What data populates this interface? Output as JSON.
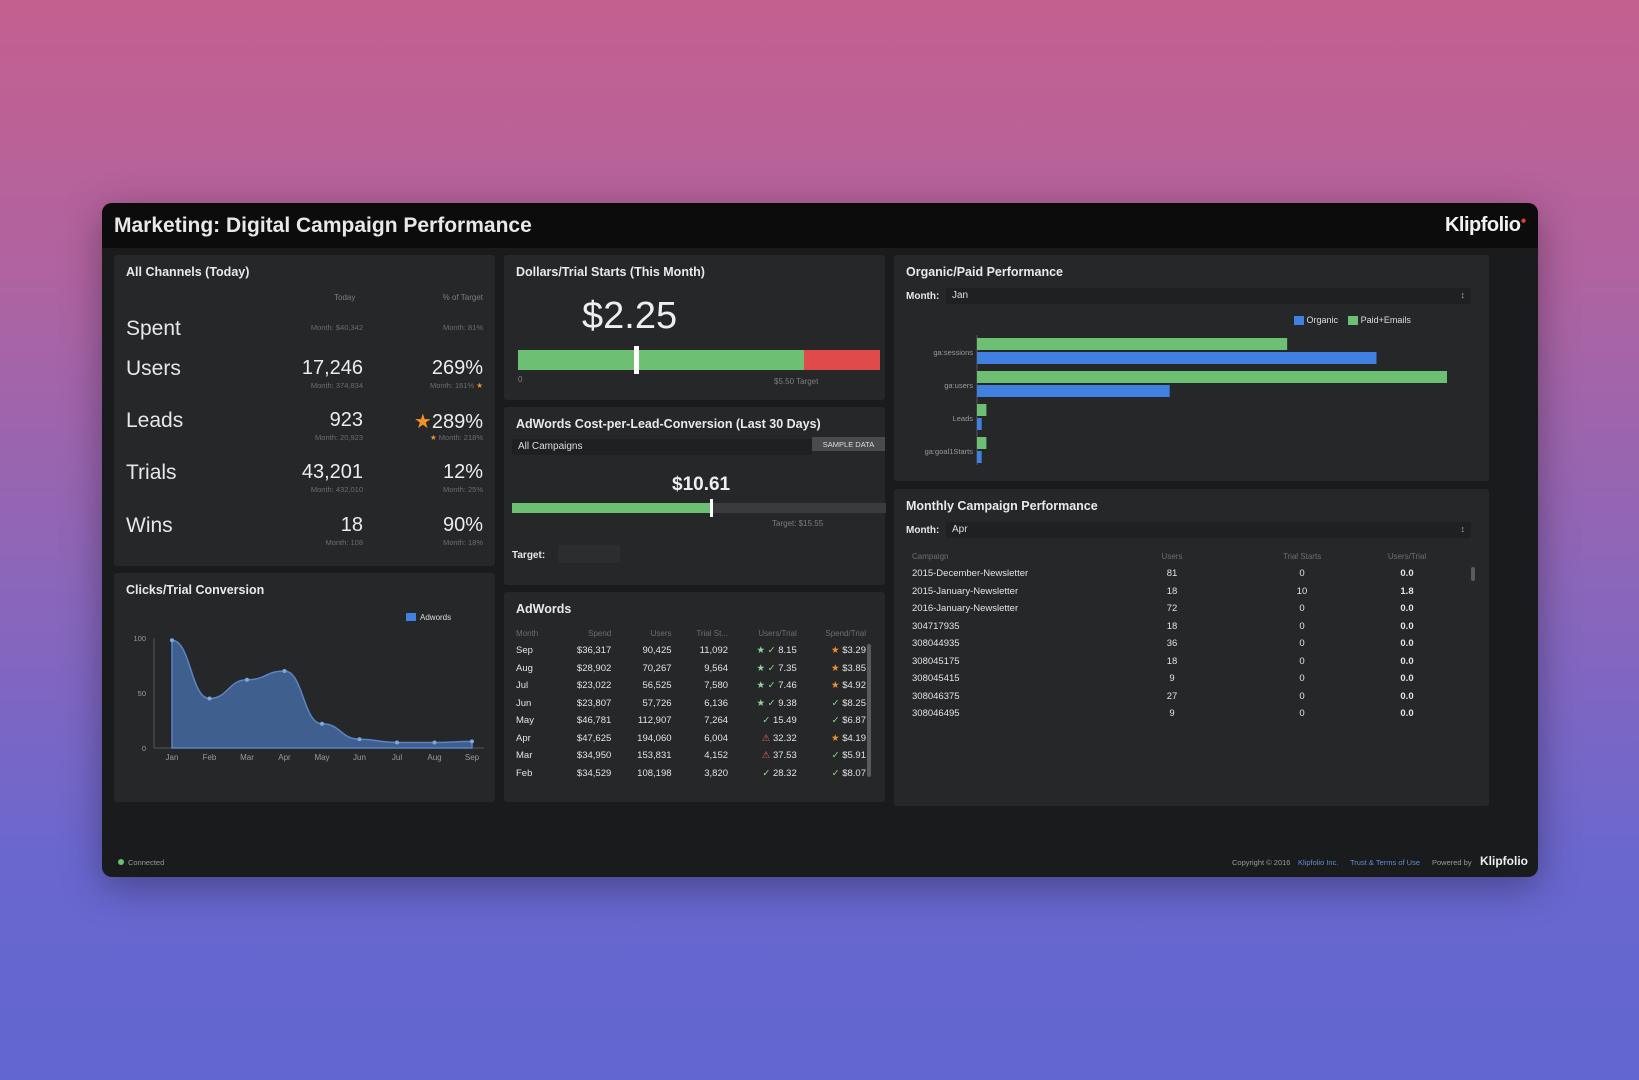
{
  "header": {
    "title": "Marketing: Digital Campaign Performance",
    "logo": "Klipfolio"
  },
  "all_channels": {
    "title": "All Channels (Today)",
    "col_today": "Today",
    "col_target": "% of Target",
    "rows": [
      {
        "label": "Spent",
        "value": "",
        "sub": "Month: $40,342",
        "pct": "",
        "pct_sub": "Month: 81%"
      },
      {
        "label": "Users",
        "value": "17,246",
        "sub": "Month: 374,834",
        "pct": "269%",
        "pct_sub": "Month: 161%"
      },
      {
        "label": "Leads",
        "value": "923",
        "sub": "Month: 20,923",
        "pct": "289%",
        "pct_sub": "Month: 218%"
      },
      {
        "label": "Trials",
        "value": "43,201",
        "sub": "Month: 432,010",
        "pct": "12%",
        "pct_sub": "Month: 25%"
      },
      {
        "label": "Wins",
        "value": "18",
        "sub": "Month: 108",
        "pct": "90%",
        "pct_sub": "Month: 18%"
      }
    ]
  },
  "dollars_trial": {
    "title": "Dollars/Trial Starts (This Month)",
    "value": "$2.25",
    "min": "0",
    "target": "$5.50 Target",
    "marker_pct": 0.32,
    "green_pct": 0.79
  },
  "adwords_cpl": {
    "title": "AdWords Cost-per-Lead-Conversion (Last 30 Days)",
    "select": "All Campaigns",
    "badge": "SAMPLE DATA",
    "value": "$10.61",
    "target_text": "Target: $15.55",
    "target_label": "Target:",
    "fill_pct": 0.53
  },
  "clicks_trial": {
    "title": "Clicks/Trial Conversion"
  },
  "chart_data": {
    "type": "area",
    "title": "Clicks/Trial Conversion",
    "categories": [
      "Jan",
      "Feb",
      "Mar",
      "Apr",
      "May",
      "Jun",
      "Jul",
      "Aug",
      "Sep"
    ],
    "series": [
      {
        "name": "Adwords",
        "values": [
          98,
          45,
          62,
          70,
          22,
          8,
          5,
          5,
          6
        ],
        "color": "#3f5f8f"
      }
    ],
    "ylim": [
      0,
      100
    ],
    "yticks": [
      "100",
      "50",
      "0"
    ],
    "legend": "top-right"
  },
  "adwords_table": {
    "title": "AdWords",
    "headers": [
      "Month",
      "Spend",
      "Users",
      "Trial St...",
      "Users/Trial",
      "Spend/Trial"
    ],
    "rows": [
      [
        "Sep",
        "$36,317",
        "90,425",
        "11,092",
        "8.15",
        "$3.29"
      ],
      [
        "Aug",
        "$28,902",
        "70,267",
        "9,564",
        "7.35",
        "$3.85"
      ],
      [
        "Jul",
        "$23,022",
        "56,525",
        "7,580",
        "7.46",
        "$4.92"
      ],
      [
        "Jun",
        "$23,807",
        "57,726",
        "6,136",
        "9.38",
        "$8.25"
      ],
      [
        "May",
        "$46,781",
        "112,907",
        "7,264",
        "15.49",
        "$6.87"
      ],
      [
        "Apr",
        "$47,625",
        "194,060",
        "6,004",
        "32.32",
        "$4.19"
      ],
      [
        "Mar",
        "$34,950",
        "153,831",
        "4,152",
        "37.53",
        "$5.91"
      ],
      [
        "Feb",
        "$34,529",
        "108,198",
        "3,820",
        "28.32",
        "$8.07"
      ]
    ]
  },
  "organic_paid": {
    "title": "Organic/Paid Performance",
    "month_label": "Month:",
    "month_value": "Jan",
    "legend": [
      "Organic",
      "Paid+Emails"
    ],
    "colors": {
      "organic": "#3f80e0",
      "paid": "#6cbf73"
    },
    "categories": [
      "ga:sessions",
      "ga:users",
      "Leads",
      "ga:goal1Starts"
    ],
    "paid": [
      0.66,
      1.0,
      0.02,
      0.02
    ],
    "organic": [
      0.85,
      0.41,
      0.01,
      0.01
    ]
  },
  "monthly_campaign": {
    "title": "Monthly Campaign Performance",
    "month_label": "Month:",
    "month_value": "Apr",
    "headers": [
      "Campaign",
      "Users",
      "Trial Starts",
      "Users/Trial"
    ],
    "rows": [
      [
        "2015-December-Newsletter",
        "81",
        "0",
        "0.0"
      ],
      [
        "2015-January-Newsletter",
        "18",
        "10",
        "1.8"
      ],
      [
        "2016-January-Newsletter",
        "72",
        "0",
        "0.0"
      ],
      [
        "304717935",
        "18",
        "0",
        "0.0"
      ],
      [
        "308044935",
        "36",
        "0",
        "0.0"
      ],
      [
        "308045175",
        "18",
        "0",
        "0.0"
      ],
      [
        "308045415",
        "9",
        "0",
        "0.0"
      ],
      [
        "308046375",
        "27",
        "0",
        "0.0"
      ],
      [
        "308046495",
        "9",
        "0",
        "0.0"
      ]
    ]
  },
  "footer": {
    "status": "Connected",
    "copyright": "Copyright © 2016",
    "link1": "Klipfolio Inc.",
    "link2": "Trust & Terms of Use",
    "powered": "Powered by",
    "logo": "Klipfolio"
  }
}
